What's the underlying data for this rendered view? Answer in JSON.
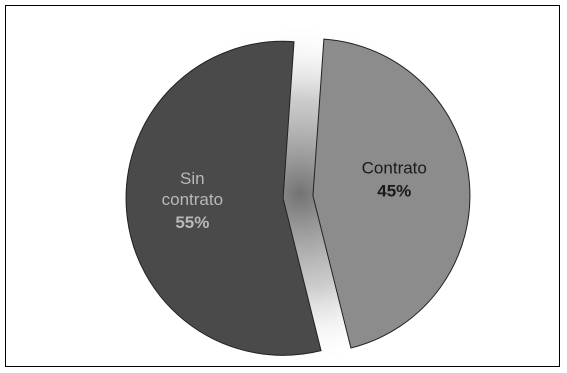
{
  "chart_data": {
    "type": "pie",
    "title": "",
    "slices": [
      {
        "label_lines": [
          "Contrato"
        ],
        "value": 45,
        "percent_label": "45%",
        "color": "#8c8c8c",
        "label_color": "#1a1a1a",
        "pct_color": "#1a1a1a"
      },
      {
        "label_lines": [
          "Sin",
          "contrato"
        ],
        "value": 55,
        "percent_label": "55%",
        "color": "#4a4a4a",
        "label_color": "#b8b8b8",
        "pct_color": "#b8b8b8"
      }
    ],
    "exploded": true,
    "legend": "none",
    "border_color": "#000000"
  }
}
